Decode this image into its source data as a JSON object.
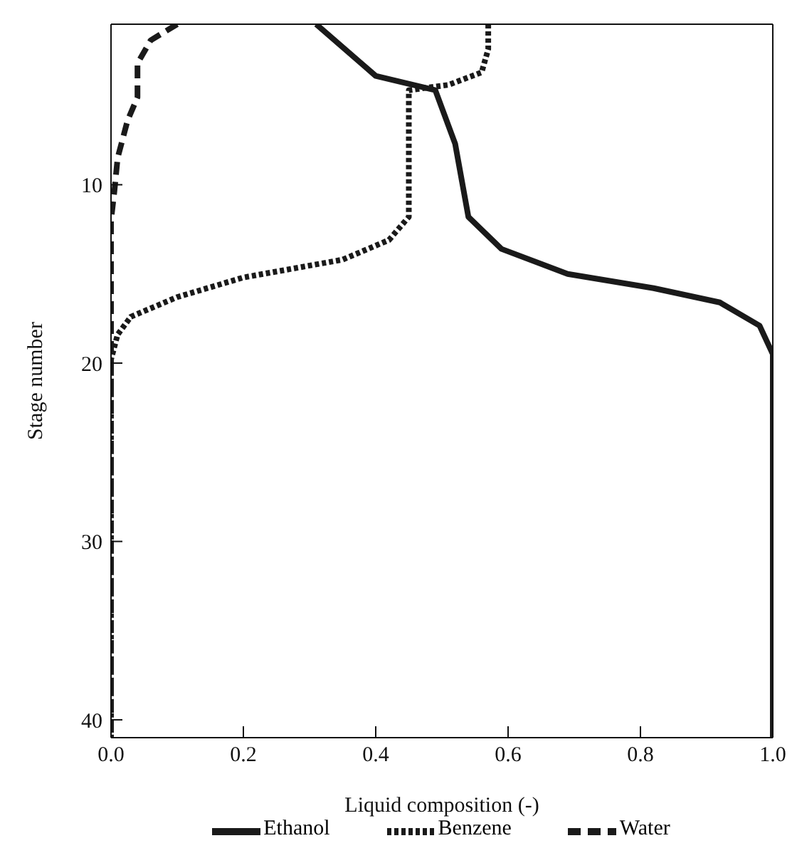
{
  "chart_data": {
    "type": "line",
    "xlabel": "Liquid composition (-)",
    "ylabel": "Stage number",
    "xlim": [
      0,
      1
    ],
    "xticks": [
      {
        "value": 0,
        "label": "0.0"
      },
      {
        "value": 0.2,
        "label": "0.2"
      },
      {
        "value": 0.4,
        "label": "0.4"
      },
      {
        "value": 0.6,
        "label": "0.6"
      },
      {
        "value": 0.8,
        "label": "0.8"
      },
      {
        "value": 1,
        "label": "1.0"
      }
    ],
    "ylim": [
      41,
      1
    ],
    "yticks": [
      10,
      20,
      30,
      40
    ],
    "grid": false,
    "legend": "bottom",
    "marker": "none",
    "series": [
      {
        "name": "Ethanol",
        "color": "#1a1a1a",
        "line_style": "solid",
        "x": [
          0.31,
          0.4,
          0.49,
          0.52,
          0.54,
          0.59,
          0.69,
          0.82,
          0.92,
          0.98,
          1.0,
          1.0
        ],
        "values": [
          1,
          3.9,
          4.7,
          7.7,
          11.8,
          13.6,
          15,
          15.8,
          16.6,
          17.9,
          19.5,
          41
        ]
      },
      {
        "name": "Benzene",
        "color": "#1a1a1a",
        "line_style": "dotted",
        "x": [
          0.57,
          0.57,
          0.56,
          0.51,
          0.45,
          0.45,
          0.42,
          0.35,
          0.2,
          0.1,
          0.03,
          0.01,
          0.0,
          0.0
        ],
        "values": [
          1,
          2.4,
          3.7,
          4.4,
          4.7,
          11.8,
          13.1,
          14.2,
          15.2,
          16.3,
          17.4,
          18.4,
          19.8,
          41
        ]
      },
      {
        "name": "Water",
        "color": "#1a1a1a",
        "line_style": "dashed",
        "x": [
          0.1,
          0.06,
          0.04,
          0.04,
          0.025,
          0.01,
          0.005,
          0.0,
          0.0
        ],
        "values": [
          1,
          1.9,
          3.2,
          5.1,
          6.4,
          8.5,
          10.4,
          12,
          41
        ]
      }
    ]
  }
}
